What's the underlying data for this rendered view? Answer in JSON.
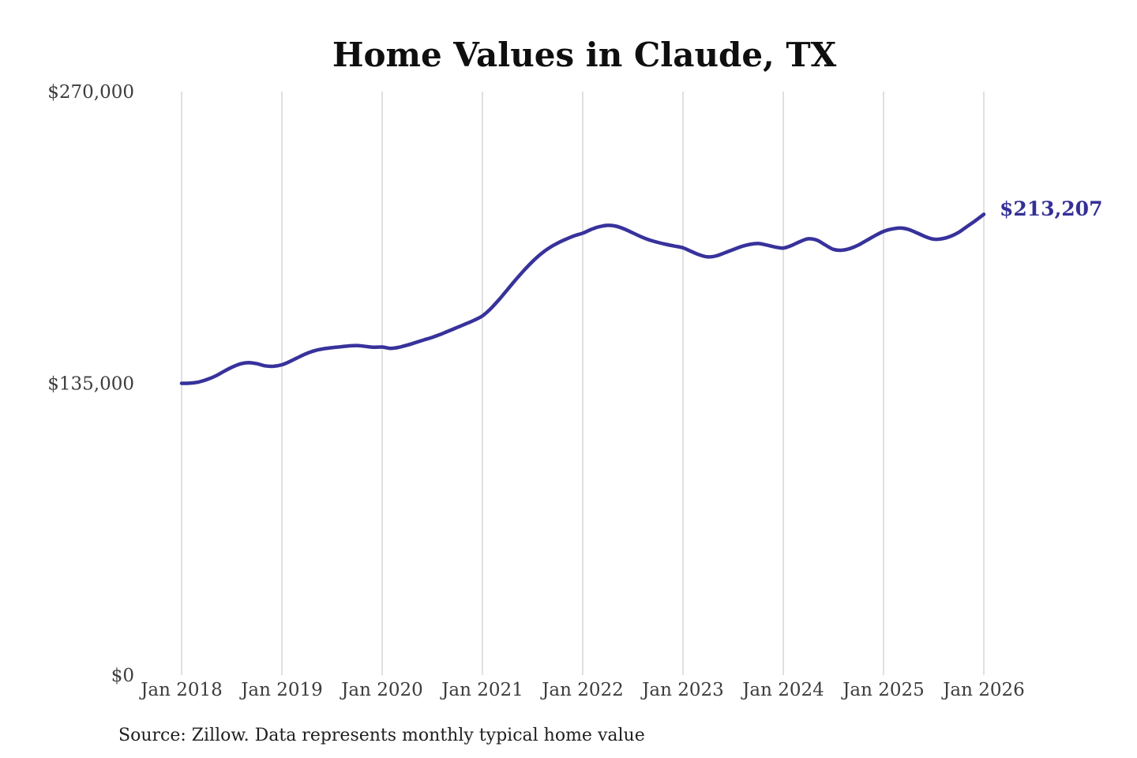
{
  "title": "Home Values in Claude, TX",
  "source_note": "Source: Zillow. Data represents monthly typical home value",
  "end_label": "$213,207",
  "colors": {
    "line": "#37329b",
    "end_label": "#353096",
    "grid": "#cbcbcb",
    "title": "#0f0f0f",
    "axis_labels": "#3d3d3d",
    "source": "#1f1f1f",
    "background": "#ffffff"
  },
  "chart_data": {
    "type": "line",
    "title": "Home Values in Claude, TX",
    "xlabel": "",
    "ylabel": "",
    "ylim": [
      0,
      270000
    ],
    "grid": "vertical-only",
    "legend": "none",
    "x_tick_labels": [
      "Jan 2018",
      "Jan 2019",
      "Jan 2020",
      "Jan 2021",
      "Jan 2022",
      "Jan 2023",
      "Jan 2024",
      "Jan 2025",
      "Jan 2026"
    ],
    "y_ticks": [
      {
        "label": "$0",
        "value": 0
      },
      {
        "label": "$135,000",
        "value": 135000
      },
      {
        "label": "$270,000",
        "value": 270000
      }
    ],
    "end_value": 213207,
    "series": [
      {
        "name": "Monthly typical home value",
        "start_month": "2018-01",
        "end_month": "2026-01",
        "values": [
          135000,
          135100,
          135600,
          136700,
          138300,
          140400,
          142400,
          144000,
          144600,
          144100,
          143100,
          142900,
          143600,
          145200,
          147100,
          148900,
          150200,
          151000,
          151500,
          151900,
          152300,
          152500,
          152100,
          151700,
          151800,
          151200,
          151700,
          152700,
          153900,
          155100,
          156300,
          157700,
          159300,
          160900,
          162500,
          164200,
          166200,
          169600,
          173800,
          178400,
          183000,
          187400,
          191400,
          194900,
          197700,
          199900,
          201700,
          203300,
          204500,
          206200,
          207500,
          208100,
          207700,
          206400,
          204600,
          202800,
          201300,
          200200,
          199300,
          198500,
          197700,
          196000,
          194400,
          193500,
          194000,
          195400,
          196900,
          198300,
          199300,
          199700,
          199000,
          198100,
          197600,
          198800,
          200600,
          201900,
          201300,
          199100,
          197000,
          196600,
          197400,
          199000,
          201200,
          203400,
          205300,
          206400,
          206900,
          206200,
          204600,
          202900,
          201700,
          201900,
          203000,
          204900,
          207600,
          210300,
          213207
        ]
      }
    ]
  }
}
